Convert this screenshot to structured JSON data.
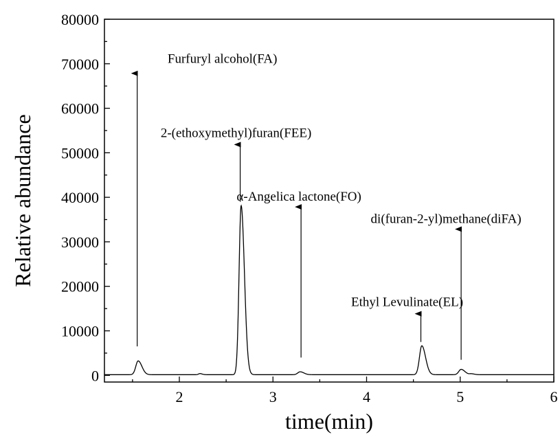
{
  "chart_data": {
    "type": "line",
    "xlabel": "time(min)",
    "ylabel": "Relative abundance",
    "xlim": [
      1.2,
      6
    ],
    "ylim": [
      -1500,
      80000
    ],
    "xticks": [
      2,
      3,
      4,
      5,
      6
    ],
    "yticks": [
      0,
      10000,
      20000,
      30000,
      40000,
      50000,
      60000,
      70000,
      80000
    ],
    "grid": false,
    "peaks": [
      {
        "time": 1.56,
        "height": 3100,
        "width": 0.025
      },
      {
        "time": 2.22,
        "height": 250,
        "width": 0.015
      },
      {
        "time": 2.66,
        "height": 38000,
        "width": 0.022
      },
      {
        "time": 3.29,
        "height": 650,
        "width": 0.025
      },
      {
        "time": 4.59,
        "height": 6500,
        "width": 0.025
      },
      {
        "time": 5.01,
        "height": 1200,
        "width": 0.025
      },
      {
        "time": 5.12,
        "height": 200,
        "width": 0.02
      }
    ],
    "baseline": 150,
    "annotations": [
      {
        "label": "Furfuryl alcohol(FA)",
        "x": 1.55,
        "y_from": 6500,
        "y_to": 68000
      },
      {
        "label": "2-(ethoxymethyl)furan(FEE)",
        "x": 2.65,
        "y_from": 39000,
        "y_to": 52000
      },
      {
        "label": "α-Angelica lactone(FO)",
        "x": 3.3,
        "y_from": 4000,
        "y_to": 38000
      },
      {
        "label": "Ethyl Levulinate(EL)",
        "x": 4.58,
        "y_from": 7500,
        "y_to": 14000
      },
      {
        "label": "di(furan-2-yl)methane(diFA)",
        "x": 5.01,
        "y_from": 3500,
        "y_to": 33000
      }
    ]
  }
}
